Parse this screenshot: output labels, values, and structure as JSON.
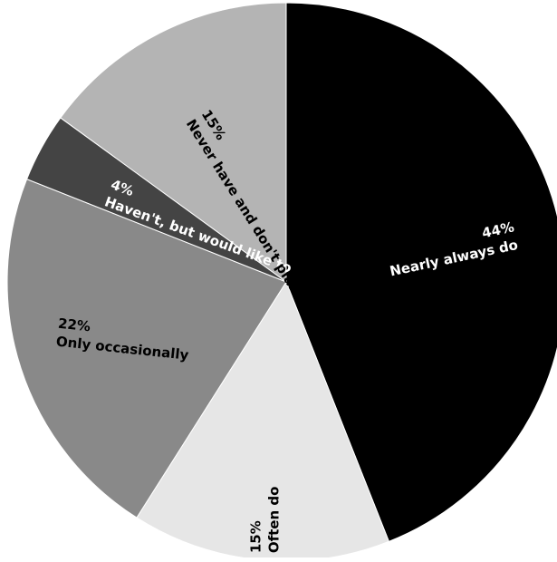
{
  "chart_data": {
    "type": "pie",
    "title": "",
    "slices": [
      {
        "label": "Nearly always do",
        "value": 44,
        "value_label": "44%",
        "color": "#000000",
        "text_color": "#ffffff",
        "slice_key": "nearly-always-do"
      },
      {
        "label": "Often do",
        "value": 15,
        "value_label": "15%",
        "color": "#e6e6e6",
        "text_color": "#000000",
        "slice_key": "often-do"
      },
      {
        "label": "Only occasionally",
        "value": 22,
        "value_label": "22%",
        "color": "#898989",
        "text_color": "#000000",
        "slice_key": "only-occasionally"
      },
      {
        "label": "Haven't, but would like to",
        "value": 4,
        "value_label": "4%",
        "color": "#444444",
        "text_color": "#ffffff",
        "slice_key": "havent-but-would-like-to"
      },
      {
        "label": "Never have and don't plan to",
        "value": 15,
        "value_label": "15%",
        "color": "#b4b4b4",
        "text_color": "#000000",
        "slice_key": "never-have-and-dont-plan-to"
      }
    ],
    "start_angle_deg": 0,
    "direction": "clockwise",
    "legend": "none"
  }
}
